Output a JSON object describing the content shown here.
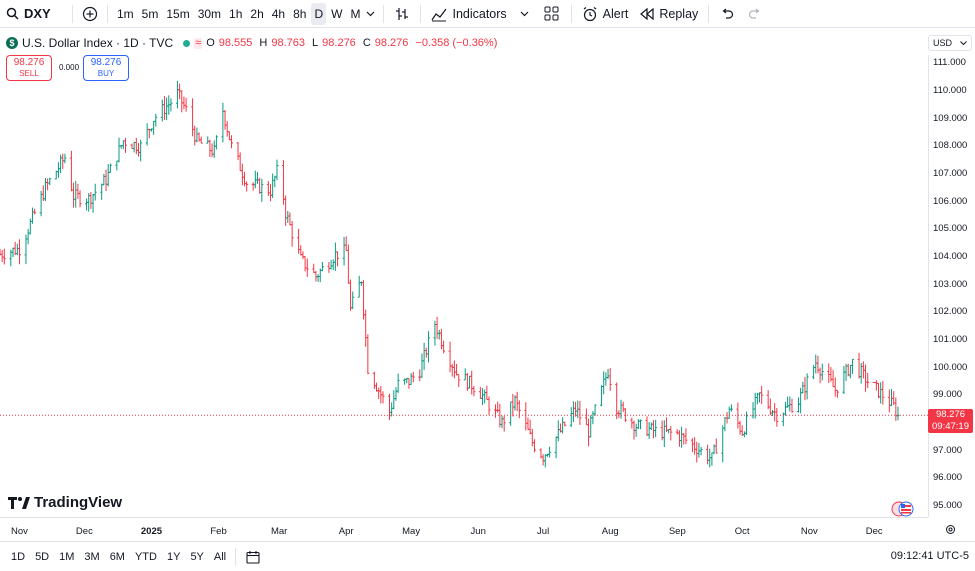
{
  "toolbar": {
    "symbol": "DXY",
    "intervals": [
      "1m",
      "5m",
      "15m",
      "30m",
      "1h",
      "2h",
      "4h",
      "8h",
      "D",
      "W",
      "M"
    ],
    "active_interval": "D",
    "indicators_label": "Indicators",
    "alert_label": "Alert",
    "replay_label": "Replay"
  },
  "legend": {
    "logo_char": "$",
    "title": "U.S. Dollar Index · 1D · TVC",
    "wave_glyph": "≈",
    "o_key": "O",
    "o_val": "98.555",
    "h_key": "H",
    "h_val": "98.763",
    "l_key": "L",
    "l_val": "98.276",
    "c_key": "C",
    "c_val": "98.276",
    "change": "−0.358 (−0.36%)"
  },
  "trade": {
    "sell_price": "98.276",
    "sell_label": "SELL",
    "spread": "0.000",
    "buy_price": "98.276",
    "buy_label": "BUY"
  },
  "currency": "USD",
  "price_axis": {
    "ticks": [
      "111.000",
      "110.000",
      "109.000",
      "108.000",
      "107.000",
      "106.000",
      "105.000",
      "104.000",
      "103.000",
      "102.000",
      "101.000",
      "100.000",
      "99.000",
      "98.000",
      "97.000",
      "96.000",
      "95.000"
    ],
    "last_price": "98.276",
    "countdown": "09:47:19"
  },
  "time_axis": {
    "labels": [
      "Nov",
      "Dec",
      "2025",
      "Feb",
      "Mar",
      "Apr",
      "May",
      "Jun",
      "Jul",
      "Aug",
      "Sep",
      "Oct",
      "Nov",
      "Dec"
    ]
  },
  "brand": "TradingView",
  "bottom": {
    "ranges": [
      "1D",
      "5D",
      "1M",
      "3M",
      "6M",
      "YTD",
      "1Y",
      "5Y",
      "All"
    ],
    "clock": "09:12:41 UTC-5"
  },
  "colors": {
    "up": "#089981",
    "down": "#f23645",
    "accent": "#2962ff"
  },
  "chart_data": {
    "type": "ohlc",
    "title": "U.S. Dollar Index · 1D · TVC",
    "ylim": [
      94.6,
      111.3
    ],
    "last": 98.276,
    "anchors": [
      [
        "2024-10-23",
        104.1
      ],
      [
        "2024-11-01",
        104.3
      ],
      [
        "2024-11-06",
        105.2
      ],
      [
        "2024-11-13",
        106.5
      ],
      [
        "2024-11-22",
        107.6
      ],
      [
        "2024-11-26",
        106.2
      ],
      [
        "2024-12-03",
        106.1
      ],
      [
        "2024-12-11",
        106.8
      ],
      [
        "2024-12-19",
        108.2
      ],
      [
        "2024-12-27",
        108.0
      ],
      [
        "2025-01-02",
        109.0
      ],
      [
        "2025-01-10",
        109.6
      ],
      [
        "2025-01-13",
        109.9
      ],
      [
        "2025-01-17",
        109.3
      ],
      [
        "2025-01-22",
        108.2
      ],
      [
        "2025-01-30",
        107.8
      ],
      [
        "2025-02-03",
        109.3
      ],
      [
        "2025-02-07",
        108.0
      ],
      [
        "2025-02-14",
        106.7
      ],
      [
        "2025-02-25",
        106.4
      ],
      [
        "2025-03-01",
        107.3
      ],
      [
        "2025-03-04",
        105.6
      ],
      [
        "2025-03-11",
        103.9
      ],
      [
        "2025-03-18",
        103.3
      ],
      [
        "2025-03-27",
        104.1
      ],
      [
        "2025-04-01",
        104.2
      ],
      [
        "2025-04-03",
        102.1
      ],
      [
        "2025-04-08",
        103.2
      ],
      [
        "2025-04-11",
        100.0
      ],
      [
        "2025-04-21",
        98.4
      ],
      [
        "2025-04-25",
        99.4
      ],
      [
        "2025-04-30",
        99.5
      ],
      [
        "2025-05-05",
        99.9
      ],
      [
        "2025-05-12",
        101.6
      ],
      [
        "2025-05-16",
        100.8
      ],
      [
        "2025-05-22",
        99.8
      ],
      [
        "2025-06-01",
        99.2
      ],
      [
        "2025-06-12",
        98.0
      ],
      [
        "2025-06-18",
        98.8
      ],
      [
        "2025-06-26",
        97.3
      ],
      [
        "2025-07-01",
        96.8
      ],
      [
        "2025-07-09",
        97.7
      ],
      [
        "2025-07-16",
        98.5
      ],
      [
        "2025-07-22",
        97.7
      ],
      [
        "2025-07-31",
        99.9
      ],
      [
        "2025-08-04",
        98.6
      ],
      [
        "2025-08-13",
        97.9
      ],
      [
        "2025-08-22",
        97.7
      ],
      [
        "2025-09-01",
        97.6
      ],
      [
        "2025-09-17",
        96.7
      ],
      [
        "2025-09-25",
        98.5
      ],
      [
        "2025-10-01",
        97.7
      ],
      [
        "2025-10-09",
        99.0
      ],
      [
        "2025-10-17",
        98.3
      ],
      [
        "2025-10-27",
        98.8
      ],
      [
        "2025-11-04",
        100.2
      ],
      [
        "2025-11-13",
        99.2
      ],
      [
        "2025-11-21",
        100.2
      ],
      [
        "2025-11-28",
        99.5
      ],
      [
        "2025-12-05",
        99.0
      ],
      [
        "2025-12-10",
        98.6
      ],
      [
        "2025-12-12",
        98.276
      ]
    ]
  }
}
